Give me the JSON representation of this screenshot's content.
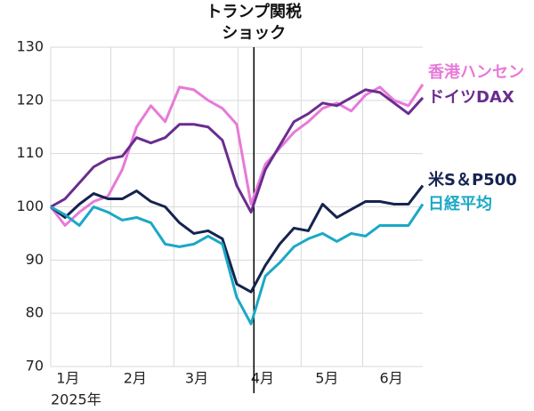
{
  "chart_data": {
    "type": "line",
    "annotation": [
      "トランプ関税",
      "ショック"
    ],
    "annotation_x": 14.2,
    "xlabel": "2025年",
    "xlim": [
      0,
      26
    ],
    "xticks": [
      {
        "value": 1.2,
        "label": "1月"
      },
      {
        "value": 5.9,
        "label": "2月"
      },
      {
        "value": 10.2,
        "label": "3月"
      },
      {
        "value": 14.8,
        "label": "4月"
      },
      {
        "value": 19.3,
        "label": "5月"
      },
      {
        "value": 23.8,
        "label": "6月"
      }
    ],
    "xgrid": [
      4.2,
      8.6,
      13.1,
      17.5,
      21.8
    ],
    "ylim": [
      70,
      130
    ],
    "yticks": [
      70,
      80,
      90,
      100,
      110,
      120,
      130
    ],
    "grid": true,
    "x": [
      0,
      1,
      2,
      3,
      4,
      5,
      6,
      7,
      8,
      9,
      10,
      11,
      12,
      13,
      14,
      15,
      16,
      17,
      18,
      19,
      20,
      21,
      22,
      23,
      24,
      25,
      26
    ],
    "series": [
      {
        "name": "香港ハンセン",
        "color": "#e77ad8",
        "values": [
          100,
          96.5,
          99,
          101,
          102,
          107,
          115,
          119,
          116,
          122.5,
          122,
          120,
          118.5,
          115.5,
          100.5,
          108,
          111,
          114,
          116,
          118.5,
          119.5,
          118,
          121,
          122.5,
          120,
          119,
          123
        ]
      },
      {
        "name": "ドイツDAX",
        "color": "#6a2d8f",
        "values": [
          100,
          101.5,
          104.5,
          107.5,
          109,
          109.5,
          113,
          112,
          113,
          115.5,
          115.5,
          115,
          112.5,
          104,
          99,
          107,
          111.5,
          116,
          117.5,
          119.5,
          119,
          120.5,
          122,
          121.5,
          119.5,
          117.5,
          120.5
        ]
      },
      {
        "name": "米S＆P500",
        "color": "#15234f",
        "values": [
          100,
          98,
          100.5,
          102.5,
          101.5,
          101.5,
          103,
          101,
          100,
          97,
          95,
          95.5,
          94,
          85.5,
          84,
          89,
          93,
          96,
          95.5,
          100.5,
          98,
          99.5,
          101,
          101,
          100.5,
          100.5,
          104
        ]
      },
      {
        "name": "日経平均",
        "color": "#1ba8c6",
        "values": [
          100,
          98.5,
          96.5,
          100,
          99,
          97.5,
          98,
          97,
          93,
          92.5,
          93,
          94.5,
          93,
          83,
          78,
          87,
          89.5,
          92.5,
          94,
          95,
          93.5,
          95,
          94.5,
          96.5,
          96.5,
          96.5,
          100.5
        ]
      }
    ]
  }
}
